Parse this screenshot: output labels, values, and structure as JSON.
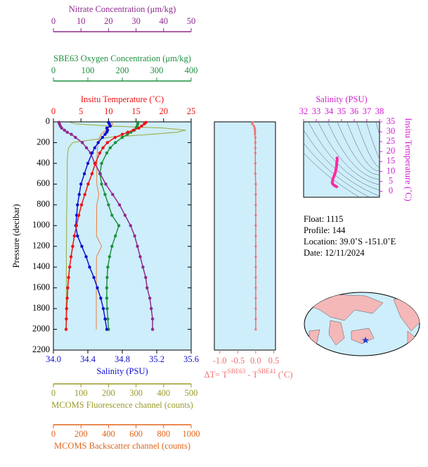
{
  "chart_data": [
    {
      "type": "line",
      "ylabel": "Pressure (decibar)",
      "y": [
        5,
        20,
        40,
        60,
        80,
        100,
        120,
        150,
        200,
        250,
        300,
        400,
        500,
        600,
        700,
        800,
        900,
        1000,
        1100,
        1200,
        1300,
        1400,
        1500,
        1600,
        1700,
        1800,
        1900,
        2000
      ],
      "ylim": [
        0,
        2200
      ],
      "y_inverted": true,
      "yticks": [
        0,
        200,
        400,
        600,
        800,
        1000,
        1200,
        1400,
        1600,
        1800,
        2000,
        2200
      ],
      "axes": [
        {
          "label": "Insitu Temperature (˚C)",
          "color": "#f01010",
          "xlim": [
            0,
            25
          ],
          "xticks": [
            0,
            5,
            10,
            15,
            20,
            25
          ]
        },
        {
          "label": "SBE63 Oxygen Concentration (μm/kg)",
          "color": "#1f9040",
          "xlim": [
            0,
            400
          ],
          "xticks": [
            0,
            100,
            200,
            300,
            400
          ]
        },
        {
          "label": "Nitrate Concentration (μm/kg)",
          "color": "#8e2a8e",
          "xlim": [
            0,
            50
          ],
          "xticks": [
            0,
            10,
            20,
            30,
            40,
            50
          ]
        },
        {
          "label": "Salinity (PSU)",
          "color": "#1010d0",
          "xlim": [
            34.0,
            35.6
          ],
          "xticks": [
            {
              "value": 34,
              "label": "34.0"
            },
            34.4,
            34.8,
            35.2,
            35.6
          ]
        },
        {
          "label": "MCOMS Fluorescence channel (counts)",
          "color": "#9a9a2a",
          "xlim": [
            0,
            500
          ],
          "xticks": [
            0,
            100,
            200,
            300,
            400,
            500
          ]
        },
        {
          "label": "MCOMS Backscatter channel (counts)",
          "color": "#e0641a",
          "xlim": [
            0,
            1000
          ],
          "xticks": [
            0,
            200,
            400,
            600,
            800,
            1000
          ]
        }
      ],
      "series": [
        {
          "axis": 4,
          "color": "#9aa83a",
          "markers": false,
          "values": [
            60,
            80,
            200,
            400,
            480,
            450,
            350,
            200,
            70,
            55,
            52,
            50,
            50,
            50,
            49,
            49,
            48,
            48,
            48,
            47,
            47,
            47,
            47,
            47,
            47,
            46,
            46,
            46
          ]
        },
        {
          "axis": 5,
          "color": "#e8803a",
          "markers": false,
          "values": [
            420,
            430,
            420,
            400,
            380,
            360,
            345,
            335,
            325,
            320,
            318,
            316,
            315,
            315,
            330,
            315,
            314,
            314,
            313,
            350,
            313,
            312,
            312,
            312,
            311,
            311,
            311,
            311
          ]
        },
        {
          "axis": 1,
          "color": "#1f9040",
          "markers": true,
          "values": [
            245,
            245,
            243,
            240,
            235,
            225,
            215,
            200,
            180,
            165,
            155,
            140,
            135,
            140,
            150,
            160,
            170,
            190,
            180,
            170,
            163,
            158,
            156,
            155,
            155,
            156,
            158,
            160
          ]
        },
        {
          "axis": 2,
          "color": "#8e2a8e",
          "markers": true,
          "values": [
            2,
            2.2,
            2.5,
            3,
            4,
            5,
            6.5,
            8,
            10.5,
            12,
            13.5,
            15,
            17,
            19,
            21.5,
            24,
            26,
            28,
            29.5,
            30.5,
            31.5,
            32.5,
            33.5,
            34,
            35,
            35.5,
            36,
            36
          ]
        },
        {
          "axis": 3,
          "color": "#1010d0",
          "markers": true,
          "values": [
            34.64,
            34.65,
            34.66,
            34.62,
            34.63,
            34.62,
            34.6,
            34.57,
            34.52,
            34.48,
            34.45,
            34.4,
            34.36,
            34.32,
            34.3,
            34.28,
            34.27,
            34.26,
            34.28,
            34.33,
            34.38,
            34.42,
            34.47,
            34.51,
            34.55,
            34.58,
            34.6,
            34.62
          ]
        },
        {
          "axis": 0,
          "color": "#f01010",
          "markers": true,
          "values": [
            16.8,
            16.5,
            16.0,
            15.5,
            14.5,
            13.5,
            12.5,
            11.2,
            9.8,
            9.0,
            8.4,
            7.6,
            7.0,
            6.3,
            5.7,
            5.1,
            4.6,
            4.2,
            3.8,
            3.5,
            3.2,
            2.95,
            2.75,
            2.6,
            2.5,
            2.4,
            2.35,
            2.3
          ]
        }
      ]
    },
    {
      "type": "line",
      "color": "#f07070",
      "xlabel_parts": [
        "ΔT= T",
        "SBE63",
        " - T",
        "SBE41",
        " (˚C)"
      ],
      "xlim": [
        -1.15,
        0.55
      ],
      "xticks": [
        {
          "value": -1,
          "label": "-1.0"
        },
        -0.5,
        {
          "value": 0,
          "label": "0.0"
        },
        0.5
      ],
      "ylim": [
        0,
        2200
      ],
      "y": [
        5,
        20,
        40,
        60,
        80,
        100,
        120,
        150,
        200,
        250,
        300,
        400,
        500,
        600,
        700,
        800,
        900,
        1000,
        1100,
        1200,
        1300,
        1400,
        1500,
        1600,
        1700,
        1800,
        1900,
        2000
      ],
      "values": [
        -0.08,
        -0.1,
        -0.05,
        -0.03,
        -0.02,
        -0.02,
        -0.02,
        -0.01,
        -0.01,
        -0.01,
        -0.01,
        -0.01,
        -0.01,
        0,
        0,
        0,
        0,
        0,
        0,
        0,
        0,
        0,
        0,
        0,
        0,
        0,
        0,
        0
      ]
    },
    {
      "type": "ts",
      "color": "#ff2aa0",
      "label_color": "#d020d0",
      "xlabel": "Salinity (PSU)",
      "ylabel": "Insitu Temperature (˚C)",
      "xlim": [
        32,
        38
      ],
      "xticks": [
        32,
        33,
        34,
        35,
        36,
        37,
        38
      ],
      "ylim": [
        -3,
        35
      ],
      "yticks": [
        0,
        5,
        10,
        15,
        20,
        25,
        30,
        35
      ],
      "x": [
        34.64,
        34.66,
        34.62,
        34.6,
        34.52,
        34.45,
        34.4,
        34.32,
        34.28,
        34.26,
        34.33,
        34.42,
        34.51,
        34.58,
        34.62
      ],
      "values": [
        16.8,
        16.0,
        14.5,
        12.5,
        9.8,
        8.4,
        7.6,
        6.3,
        5.1,
        4.2,
        3.5,
        2.95,
        2.6,
        2.4,
        2.3
      ]
    }
  ],
  "info": [
    "Float:  1115",
    "Profile:  144",
    "Location:  39.0˚S  -151.0˚E",
    "Date:  12/11/2024"
  ]
}
